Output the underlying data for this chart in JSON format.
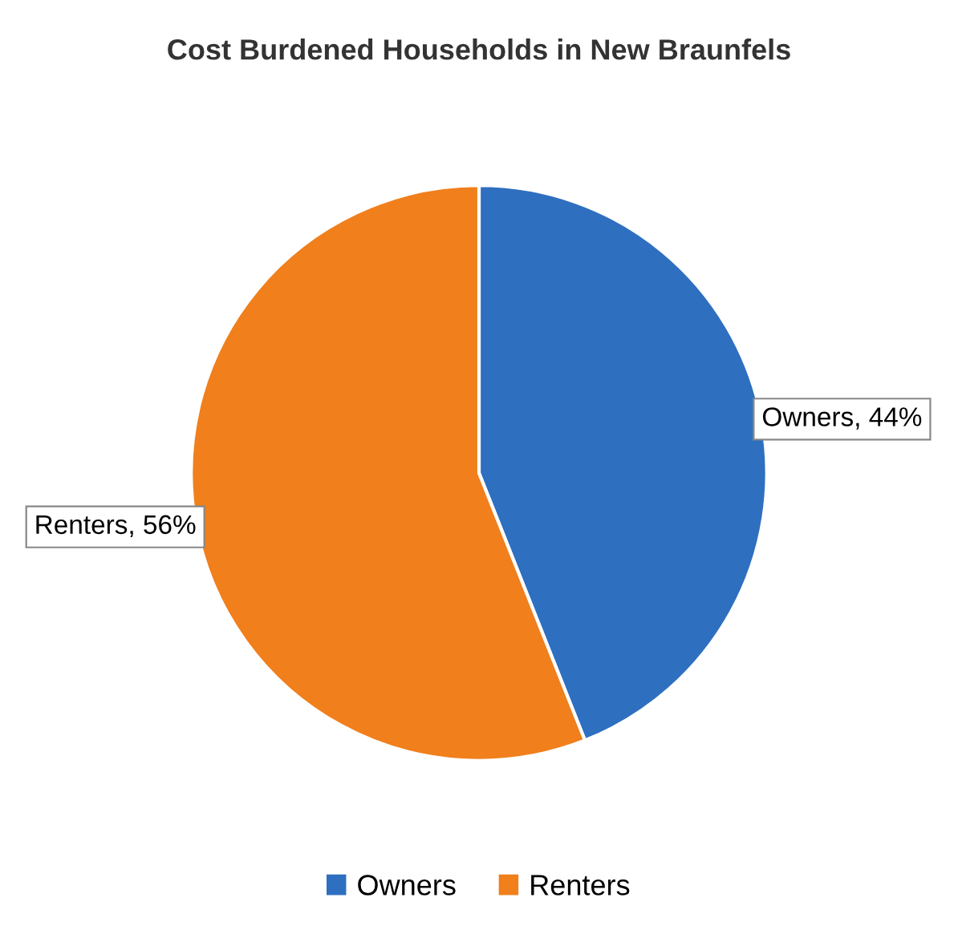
{
  "chart_data": {
    "type": "pie",
    "title": "Cost Burdened Households in New Braunfels",
    "categories": [
      "Owners",
      "Renters"
    ],
    "values": [
      44,
      56
    ],
    "colors": [
      "#2e6fc0",
      "#f07f1c"
    ],
    "value_labels": [
      "Owners, 44%",
      "Renters, 56%"
    ],
    "legend": "bottom"
  }
}
